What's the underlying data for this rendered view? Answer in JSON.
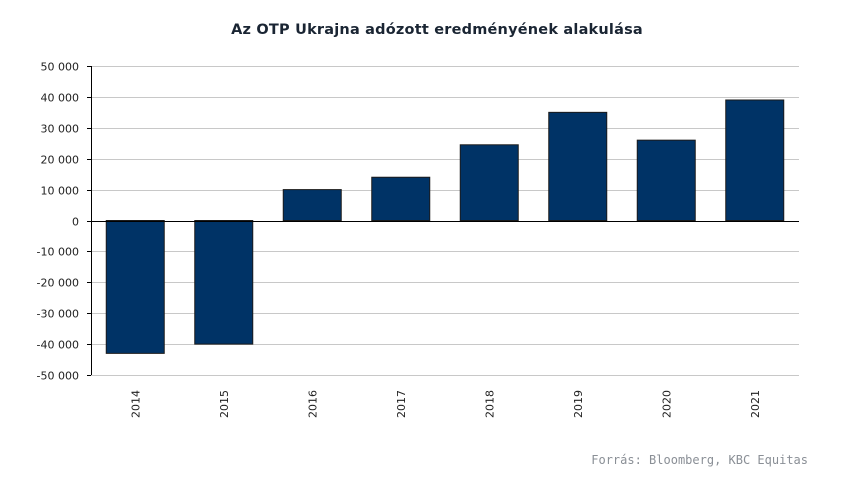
{
  "chart_data": {
    "type": "bar",
    "title": "Az OTP Ukrajna adózott eredményének alakulása",
    "xlabel": "",
    "ylabel": "",
    "categories": [
      "2014",
      "2015",
      "2016",
      "2017",
      "2018",
      "2019",
      "2020",
      "2021"
    ],
    "values": [
      -43000,
      -40000,
      10000,
      14000,
      24500,
      35000,
      26000,
      39000
    ],
    "ylim": [
      -50000,
      50000
    ],
    "yticks": [
      50000,
      40000,
      30000,
      20000,
      10000,
      0,
      -10000,
      -20000,
      -30000,
      -40000,
      -50000
    ],
    "ytick_labels": [
      "50 000",
      "40 000",
      "30 000",
      "20 000",
      "10 000",
      "0",
      "-10 000",
      "-20 000",
      "-30 000",
      "-40 000",
      "-50 000"
    ],
    "grid": true,
    "legend": "none",
    "bar_color": "#003366",
    "grid_color": "#c8c8c8"
  },
  "source": "Forrás: Bloomberg, KBC Equitas"
}
